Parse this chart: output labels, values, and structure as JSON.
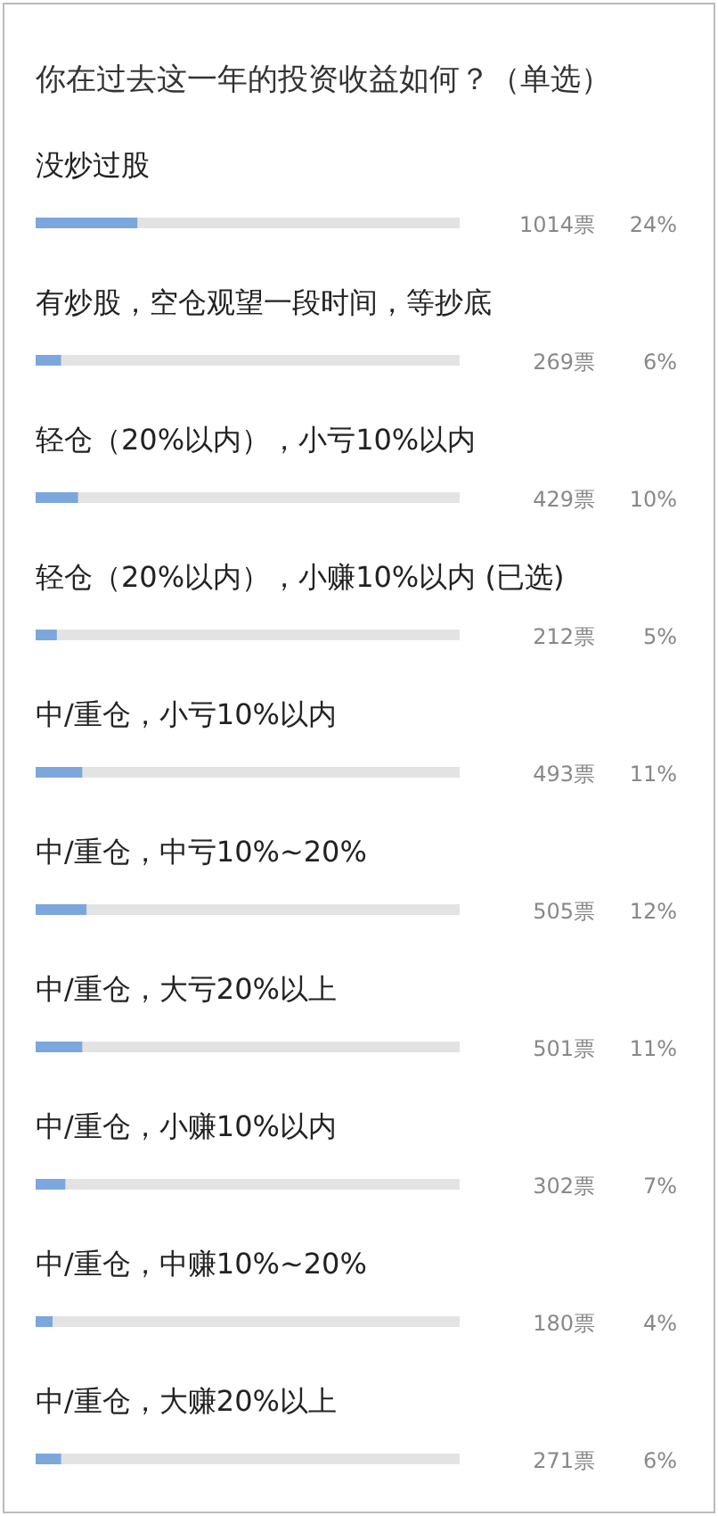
{
  "chart_data": {
    "type": "bar",
    "orientation": "horizontal",
    "title": "你在过去这一年的投资收益如何？（单选）",
    "categories": [
      "没炒过股",
      "有炒股，空仓观望一段时间，等抄底",
      "轻仓（20%以内），小亏10%以内",
      "轻仓（20%以内），小赚10%以内 (已选)",
      "中/重仓，小亏10%以内",
      "中/重仓，中亏10%~20%",
      "中/重仓，大亏20%以上",
      "中/重仓，小赚10%以内",
      "中/重仓，中赚10%~20%",
      "中/重仓，大赚20%以上"
    ],
    "values": [
      24,
      6,
      10,
      5,
      11,
      12,
      11,
      7,
      4,
      6
    ],
    "value_labels": [
      "24%",
      "6%",
      "10%",
      "5%",
      "11%",
      "12%",
      "11%",
      "7%",
      "4%",
      "6%"
    ],
    "color": "#7ba7dc",
    "xlim": [
      0,
      100
    ],
    "annotations": [
      "1014票",
      "269票",
      "429票",
      "212票",
      "493票",
      "505票",
      "501票",
      "302票",
      "180票",
      "271票"
    ]
  }
}
